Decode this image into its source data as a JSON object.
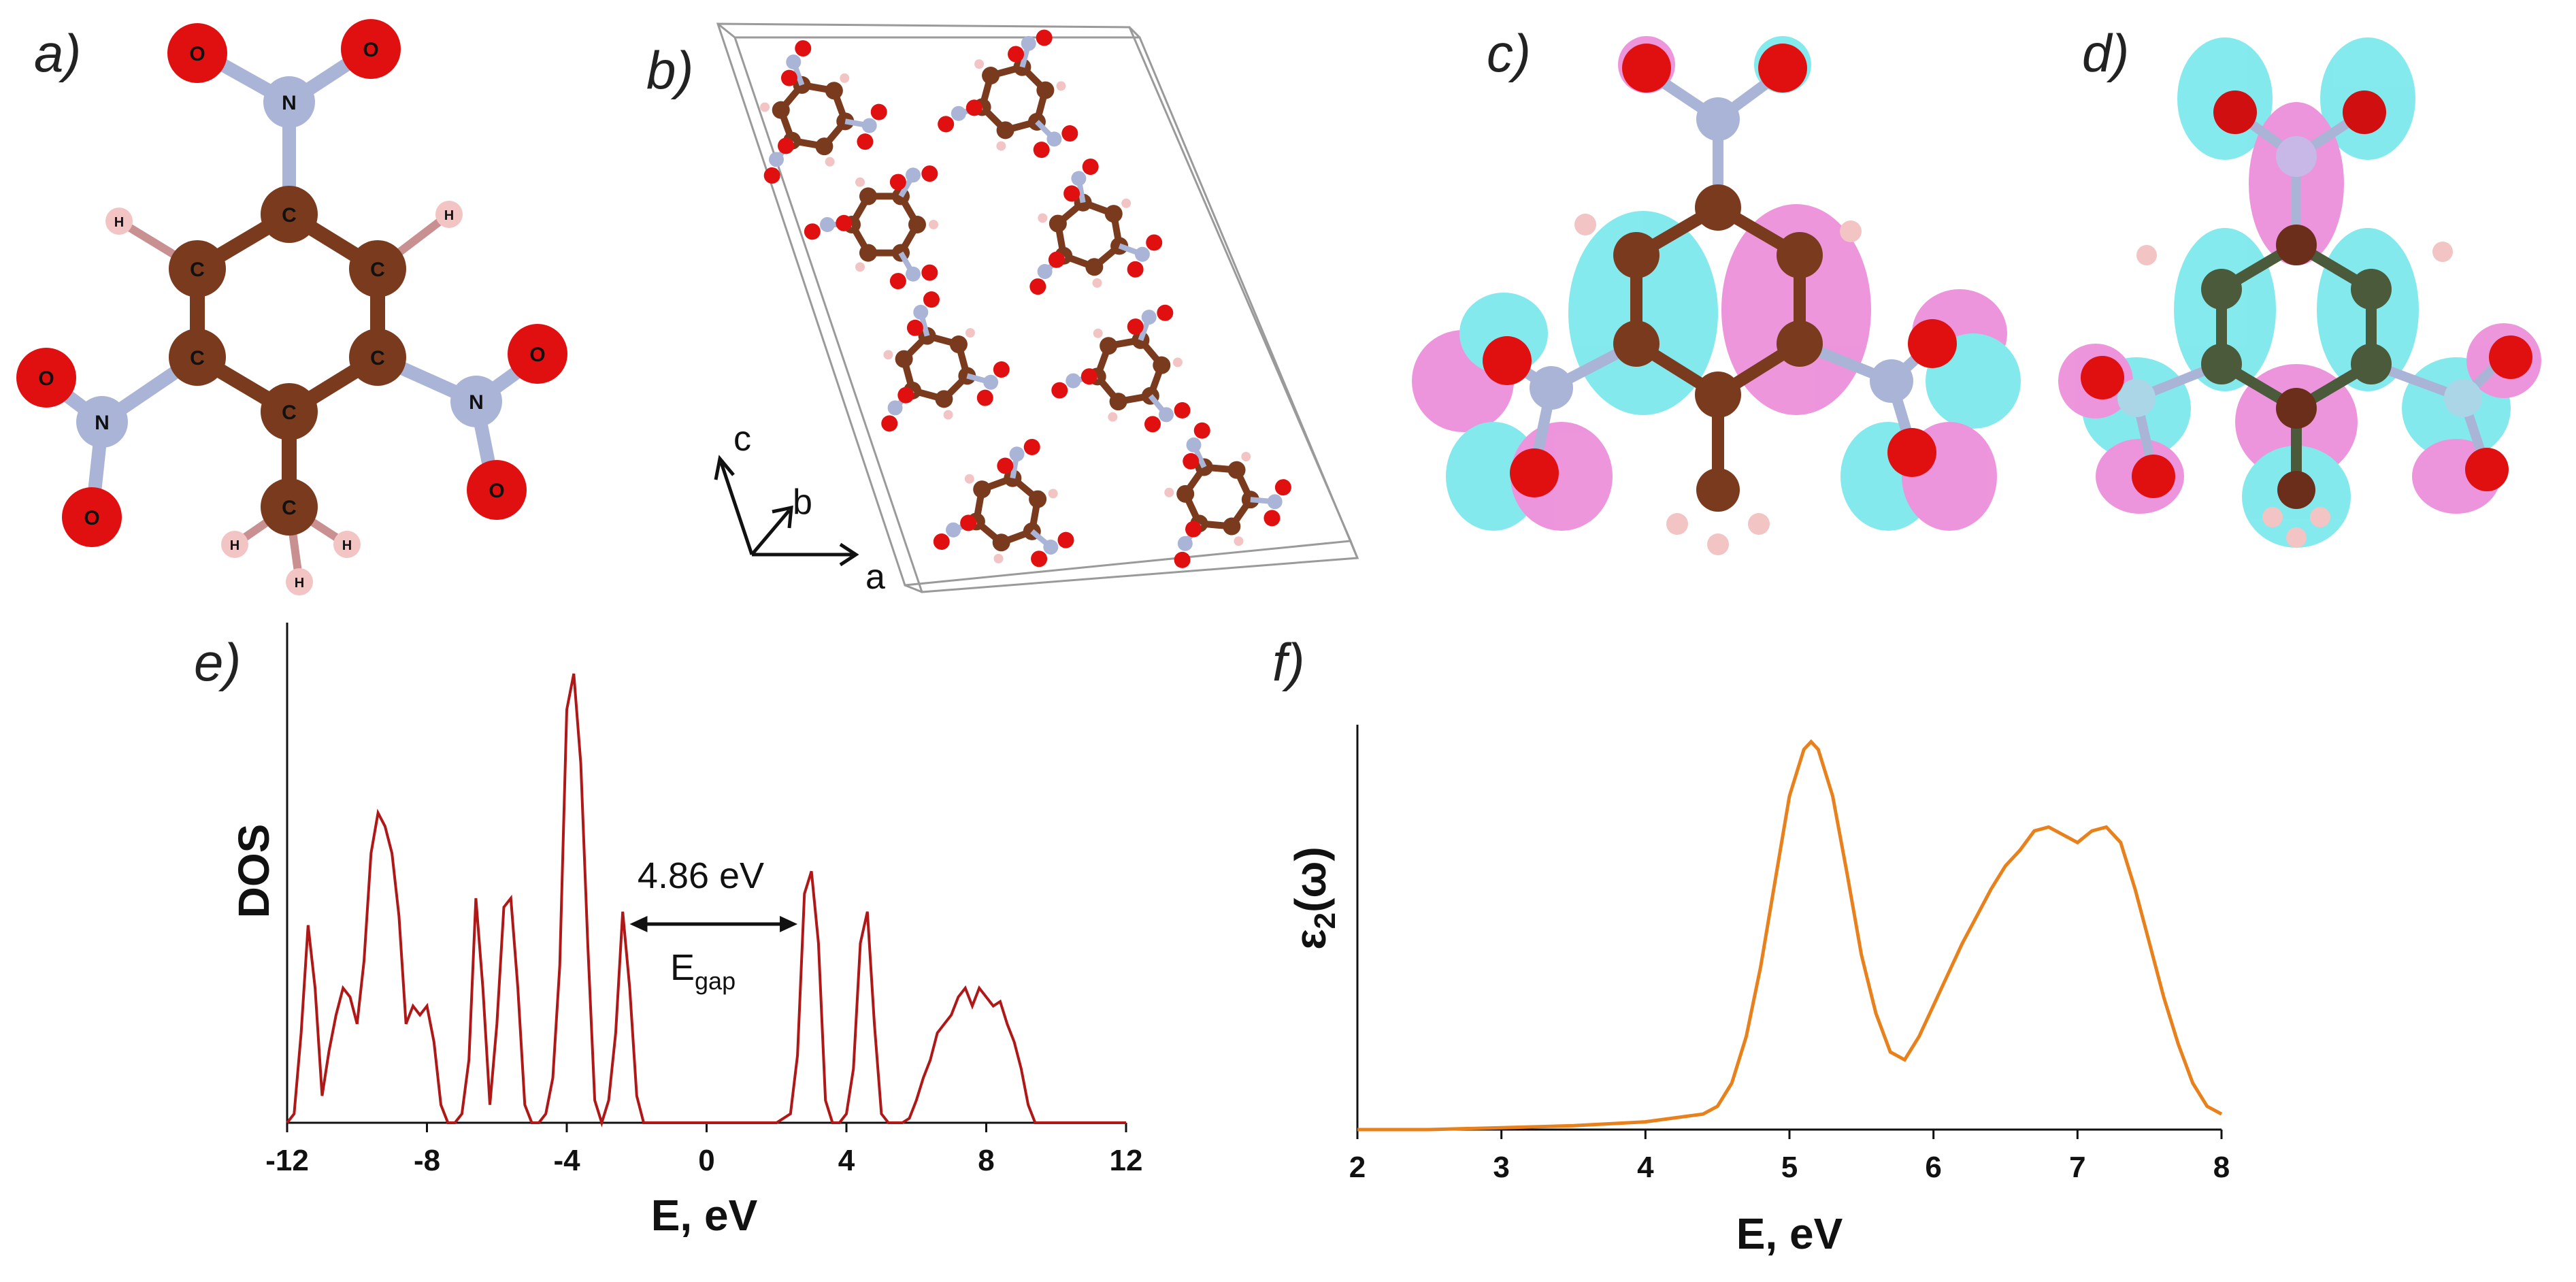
{
  "panels": {
    "a": "a)",
    "b": "b)",
    "c": "c)",
    "d": "d)",
    "e": "e)",
    "f": "f)"
  },
  "atom_labels": {
    "nitrogen": "N",
    "carbon": "C",
    "oxygen": "O",
    "hydrogen": "H"
  },
  "axes_letters": {
    "a": "a",
    "b": "b",
    "c": "c"
  },
  "colors": {
    "carbon": "#7a3a1e",
    "nitrogen": "#aab4d6",
    "oxygen": "#e01010",
    "hydrogen": "#f2c4c4",
    "bond": "#7a3a1e",
    "orbital_pos": "#e040c0",
    "orbital_neg": "#20d8e0",
    "dos_line": "#b01818",
    "eps_line": "#e8801c"
  },
  "chart_data": [
    {
      "type": "line",
      "panel": "e)",
      "xlabel": "E, eV",
      "ylabel": "DOS",
      "xlim": [
        -12,
        12
      ],
      "xticks": [
        "-12",
        "-8",
        "-4",
        "0",
        "4",
        "8",
        "12"
      ],
      "annotation": {
        "gap_value": "4.86 eV",
        "gap_symbol": "E",
        "gap_subscript": "gap",
        "from": -2.2,
        "to": 2.6
      },
      "x": [
        -12,
        -11.8,
        -11.6,
        -11.4,
        -11.2,
        -11.0,
        -10.8,
        -10.6,
        -10.4,
        -10.2,
        -10.0,
        -9.8,
        -9.6,
        -9.4,
        -9.2,
        -9.0,
        -8.8,
        -8.6,
        -8.4,
        -8.2,
        -8.0,
        -7.8,
        -7.6,
        -7.4,
        -7.2,
        -7.0,
        -6.8,
        -6.6,
        -6.4,
        -6.2,
        -6.0,
        -5.8,
        -5.6,
        -5.4,
        -5.2,
        -5.0,
        -4.8,
        -4.6,
        -4.4,
        -4.2,
        -4.0,
        -3.8,
        -3.6,
        -3.4,
        -3.2,
        -3.0,
        -2.8,
        -2.6,
        -2.4,
        -2.2,
        -2.0,
        -1.8,
        -1.5,
        -1.0,
        0,
        1.0,
        2.0,
        2.4,
        2.6,
        2.8,
        3.0,
        3.2,
        3.4,
        3.6,
        3.8,
        4.0,
        4.2,
        4.4,
        4.6,
        4.8,
        5.0,
        5.2,
        5.4,
        5.6,
        5.8,
        6.0,
        6.2,
        6.4,
        6.6,
        6.8,
        7.0,
        7.2,
        7.4,
        7.6,
        7.8,
        8.0,
        8.2,
        8.4,
        8.6,
        8.8,
        9.0,
        9.2,
        9.4,
        9.6,
        9.8,
        10.0,
        10.2,
        10.4,
        10.6,
        10.8,
        11.0,
        11.2,
        11.4,
        11.6,
        11.8,
        12.0
      ],
      "y": [
        0,
        0.02,
        0.2,
        0.44,
        0.3,
        0.06,
        0.16,
        0.24,
        0.3,
        0.28,
        0.22,
        0.36,
        0.6,
        0.69,
        0.66,
        0.6,
        0.46,
        0.22,
        0.26,
        0.24,
        0.26,
        0.18,
        0.04,
        0,
        0,
        0.02,
        0.14,
        0.5,
        0.3,
        0.04,
        0.22,
        0.48,
        0.5,
        0.3,
        0.04,
        0,
        0,
        0.02,
        0.1,
        0.35,
        0.92,
        1.0,
        0.8,
        0.4,
        0.05,
        0,
        0.05,
        0.2,
        0.47,
        0.3,
        0.06,
        0,
        0,
        0,
        0,
        0,
        0,
        0.02,
        0.15,
        0.51,
        0.56,
        0.4,
        0.05,
        0,
        0,
        0.02,
        0.12,
        0.4,
        0.47,
        0.22,
        0.02,
        0,
        0,
        0,
        0.01,
        0.05,
        0.1,
        0.14,
        0.2,
        0.22,
        0.24,
        0.28,
        0.3,
        0.26,
        0.3,
        0.28,
        0.26,
        0.27,
        0.22,
        0.18,
        0.12,
        0.04,
        0,
        0,
        0,
        0,
        0,
        0,
        0,
        0,
        0,
        0,
        0,
        0,
        0,
        0
      ]
    },
    {
      "type": "line",
      "panel": "f)",
      "xlabel": "E, eV",
      "ylabel": "ε2(ω)",
      "ylabel_main": "ε",
      "ylabel_sub": "2",
      "ylabel_tail": "(ω)",
      "xlim": [
        2,
        8
      ],
      "xticks": [
        "2",
        "3",
        "4",
        "5",
        "6",
        "7",
        "8"
      ],
      "x": [
        2.0,
        2.5,
        3.0,
        3.5,
        4.0,
        4.2,
        4.4,
        4.5,
        4.6,
        4.7,
        4.8,
        4.9,
        5.0,
        5.1,
        5.15,
        5.2,
        5.3,
        5.4,
        5.5,
        5.6,
        5.7,
        5.8,
        5.9,
        6.0,
        6.1,
        6.2,
        6.3,
        6.4,
        6.5,
        6.6,
        6.7,
        6.8,
        6.9,
        7.0,
        7.1,
        7.2,
        7.3,
        7.4,
        7.5,
        7.6,
        7.7,
        7.8,
        7.9,
        8.0
      ],
      "y": [
        0,
        0,
        0.005,
        0.01,
        0.02,
        0.03,
        0.04,
        0.06,
        0.12,
        0.24,
        0.42,
        0.64,
        0.86,
        0.98,
        1.0,
        0.98,
        0.86,
        0.66,
        0.45,
        0.3,
        0.2,
        0.18,
        0.24,
        0.32,
        0.4,
        0.48,
        0.55,
        0.62,
        0.68,
        0.72,
        0.77,
        0.78,
        0.76,
        0.74,
        0.77,
        0.78,
        0.74,
        0.62,
        0.48,
        0.34,
        0.22,
        0.12,
        0.06,
        0.04
      ]
    }
  ]
}
